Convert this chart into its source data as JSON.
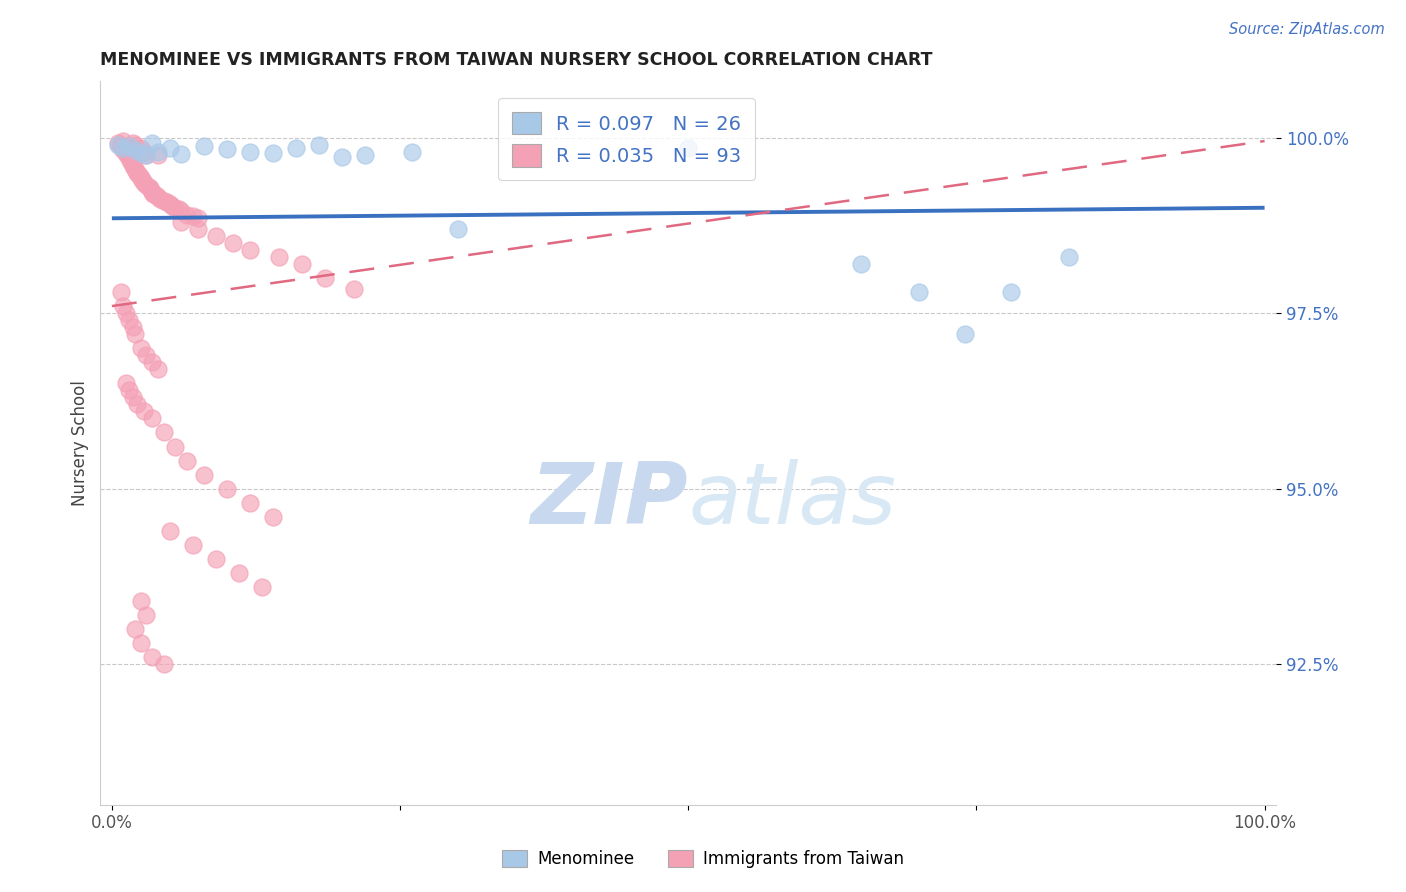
{
  "title": "MENOMINEE VS IMMIGRANTS FROM TAIWAN NURSERY SCHOOL CORRELATION CHART",
  "source_text": "Source: ZipAtlas.com",
  "ylabel": "Nursery School",
  "legend_label_1": "Menominee",
  "legend_label_2": "Immigrants from Taiwan",
  "R1": 0.097,
  "N1": 26,
  "R2": 0.035,
  "N2": 93,
  "color1": "#A8C8E8",
  "color2": "#F4A0B5",
  "trendline1_color": "#3A70C0",
  "trendline2_color": "#E06880",
  "watermark_zip": "ZIP",
  "watermark_atlas": "atlas",
  "watermark_color_zip": "#C8D8EE",
  "watermark_color_atlas": "#D8E8F4",
  "xmin": -0.01,
  "xmax": 1.01,
  "ymin": 0.905,
  "ymax": 1.008,
  "yticks": [
    0.925,
    0.95,
    0.975,
    1.0
  ],
  "ytick_labels": [
    "92.5%",
    "95.0%",
    "97.5%",
    "100.0%"
  ],
  "xtick_labels": [
    "0.0%",
    "",
    "",
    "",
    "100.0%"
  ],
  "menominee_x": [
    0.005,
    0.01,
    0.015,
    0.02,
    0.025,
    0.03,
    0.035,
    0.04,
    0.05,
    0.06,
    0.08,
    0.1,
    0.12,
    0.16,
    0.2,
    0.5,
    0.65,
    0.7,
    0.74,
    0.78,
    0.83,
    0.22,
    0.26,
    0.14,
    0.18,
    0.3
  ],
  "menominee_y": [
    0.999,
    0.9985,
    0.9988,
    0.9982,
    0.9978,
    0.9975,
    0.9992,
    0.998,
    0.9985,
    0.9976,
    0.9988,
    0.9983,
    0.9979,
    0.9985,
    0.9972,
    0.9985,
    0.982,
    0.978,
    0.972,
    0.978,
    0.983,
    0.9975,
    0.998,
    0.9978,
    0.999,
    0.987
  ],
  "taiwan_x": [
    0.005,
    0.007,
    0.008,
    0.009,
    0.01,
    0.01,
    0.012,
    0.012,
    0.013,
    0.014,
    0.015,
    0.015,
    0.016,
    0.017,
    0.018,
    0.018,
    0.019,
    0.02,
    0.02,
    0.021,
    0.022,
    0.023,
    0.024,
    0.025,
    0.025,
    0.026,
    0.027,
    0.028,
    0.028,
    0.03,
    0.03,
    0.032,
    0.033,
    0.034,
    0.035,
    0.036,
    0.038,
    0.04,
    0.04,
    0.042,
    0.045,
    0.048,
    0.05,
    0.052,
    0.055,
    0.058,
    0.06,
    0.065,
    0.07,
    0.075,
    0.008,
    0.01,
    0.012,
    0.015,
    0.018,
    0.02,
    0.025,
    0.03,
    0.035,
    0.04,
    0.012,
    0.015,
    0.018,
    0.022,
    0.028,
    0.035,
    0.045,
    0.055,
    0.065,
    0.08,
    0.1,
    0.12,
    0.14,
    0.05,
    0.07,
    0.09,
    0.11,
    0.13,
    0.025,
    0.03,
    0.02,
    0.025,
    0.035,
    0.045,
    0.06,
    0.075,
    0.09,
    0.105,
    0.12,
    0.145,
    0.165,
    0.185,
    0.21
  ],
  "taiwan_y": [
    0.9992,
    0.999,
    0.9988,
    0.9985,
    0.9995,
    0.9982,
    0.998,
    0.9978,
    0.9975,
    0.9988,
    0.9972,
    0.9985,
    0.9968,
    0.9965,
    0.9992,
    0.996,
    0.9958,
    0.999,
    0.9955,
    0.9952,
    0.995,
    0.9948,
    0.9945,
    0.9942,
    0.9985,
    0.994,
    0.9938,
    0.9935,
    0.998,
    0.9932,
    0.9975,
    0.993,
    0.9928,
    0.9925,
    0.9922,
    0.992,
    0.9918,
    0.9915,
    0.9975,
    0.9912,
    0.991,
    0.9908,
    0.9905,
    0.9902,
    0.99,
    0.9898,
    0.9895,
    0.989,
    0.9888,
    0.9885,
    0.978,
    0.976,
    0.975,
    0.974,
    0.973,
    0.972,
    0.97,
    0.969,
    0.968,
    0.967,
    0.965,
    0.964,
    0.963,
    0.962,
    0.961,
    0.96,
    0.958,
    0.956,
    0.954,
    0.952,
    0.95,
    0.948,
    0.946,
    0.944,
    0.942,
    0.94,
    0.938,
    0.936,
    0.934,
    0.932,
    0.93,
    0.928,
    0.926,
    0.925,
    0.988,
    0.987,
    0.986,
    0.985,
    0.984,
    0.983,
    0.982,
    0.98,
    0.9785
  ],
  "trendline1_x0": 0.0,
  "trendline1_x1": 1.0,
  "trendline1_y0": 0.9885,
  "trendline1_y1": 0.99,
  "trendline2_x0": 0.0,
  "trendline2_x1": 1.0,
  "trendline2_y0": 0.976,
  "trendline2_y1": 0.9995
}
